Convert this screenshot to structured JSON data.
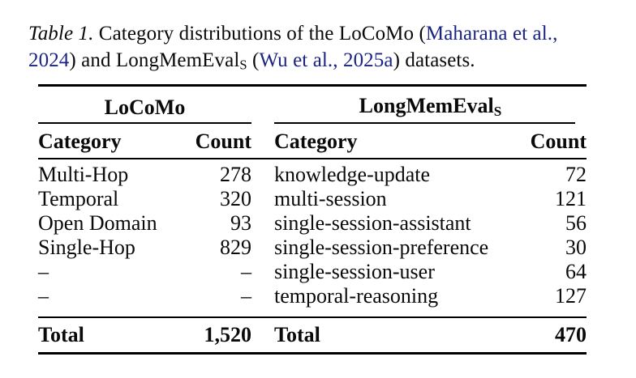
{
  "colors": {
    "citation_link": "#1b2383",
    "text": "#0a0a0a",
    "rule": "#000000"
  },
  "caption": {
    "label": "Table 1.",
    "before_cite1": " Category distributions of the LoCoMo (",
    "cite1_line1": "Maharana et al.,",
    "cite1_line2": "2024",
    "after_cite1": ") and LongMemEval",
    "subscript": "S",
    "between": " (",
    "cite2": "Wu et al., 2025a",
    "after_cite2": ") datasets."
  },
  "table": {
    "group_left": "LoCoMo",
    "group_right_name": "LongMemEval",
    "group_right_sub": "S",
    "columns": {
      "lc_cat": "Category",
      "lc_count": "Count",
      "lm_cat": "Category",
      "lm_count": "Count"
    },
    "rows": [
      {
        "lc_cat": "Multi-Hop",
        "lc_count": "278",
        "lm_cat": "knowledge-update",
        "lm_count": "72"
      },
      {
        "lc_cat": "Temporal",
        "lc_count": "320",
        "lm_cat": "multi-session",
        "lm_count": "121"
      },
      {
        "lc_cat": "Open Domain",
        "lc_count": "93",
        "lm_cat": "single-session-assistant",
        "lm_count": "56"
      },
      {
        "lc_cat": "Single-Hop",
        "lc_count": "829",
        "lm_cat": "single-session-preference",
        "lm_count": "30"
      },
      {
        "lc_cat": "–",
        "lc_count": "–",
        "lm_cat": "single-session-user",
        "lm_count": "64"
      },
      {
        "lc_cat": "–",
        "lc_count": "–",
        "lm_cat": "temporal-reasoning",
        "lm_count": "127"
      }
    ],
    "total": {
      "lc_label": "Total",
      "lc_value": "1,520",
      "lm_label": "Total",
      "lm_value": "470"
    }
  }
}
